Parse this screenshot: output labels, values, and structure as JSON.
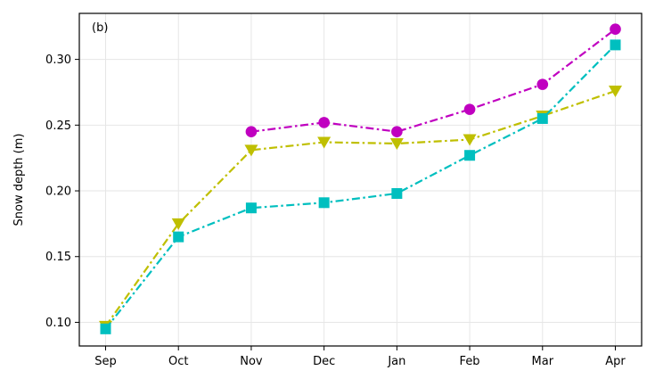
{
  "chart_data": {
    "type": "line",
    "panel_label": "(b)",
    "title": "",
    "xlabel": "",
    "ylabel": "Snow depth (m)",
    "categories": [
      "Sep",
      "Oct",
      "Nov",
      "Dec",
      "Jan",
      "Feb",
      "Mar",
      "Apr"
    ],
    "ylim": [
      0.082,
      0.335
    ],
    "yticks": [
      0.1,
      0.15,
      0.2,
      0.25,
      0.3
    ],
    "ytick_labels": [
      "0.10",
      "0.15",
      "0.20",
      "0.25",
      "0.30"
    ],
    "grid": true,
    "legend": "none",
    "series": [
      {
        "color": "#c000c0",
        "marker": "circle",
        "linestyle": "dash-dot",
        "values": [
          null,
          null,
          0.245,
          0.252,
          0.245,
          0.262,
          0.281,
          0.323
        ]
      },
      {
        "color": "#bfbf00",
        "marker": "triangle-down",
        "linestyle": "dash-dot",
        "values": [
          0.097,
          0.175,
          0.231,
          0.237,
          0.236,
          0.239,
          0.257,
          0.276
        ]
      },
      {
        "color": "#00bfbf",
        "marker": "square",
        "linestyle": "dash-dot",
        "values": [
          0.095,
          0.165,
          0.187,
          0.191,
          0.198,
          0.227,
          0.255,
          0.311
        ]
      }
    ]
  }
}
